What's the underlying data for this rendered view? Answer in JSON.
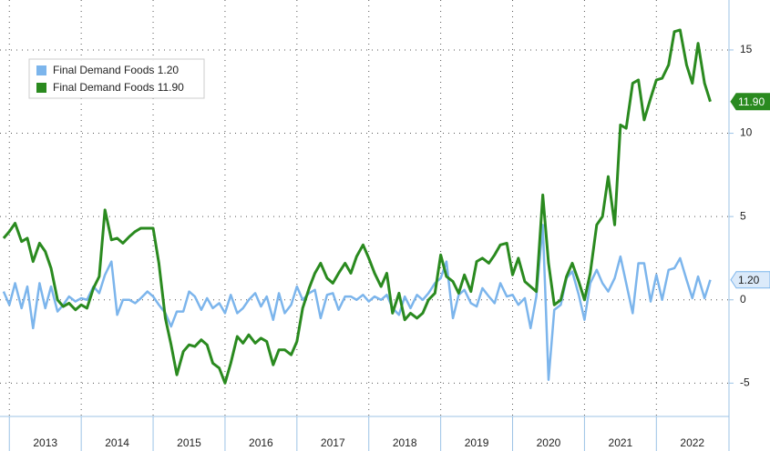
{
  "chart_data": {
    "type": "line",
    "x": [
      2012.92,
      2013.0,
      2013.08,
      2013.17,
      2013.25,
      2013.33,
      2013.42,
      2013.5,
      2013.58,
      2013.67,
      2013.75,
      2013.83,
      2013.92,
      2014.0,
      2014.08,
      2014.17,
      2014.25,
      2014.33,
      2014.42,
      2014.5,
      2014.58,
      2014.67,
      2014.75,
      2014.83,
      2014.92,
      2015.0,
      2015.08,
      2015.17,
      2015.25,
      2015.33,
      2015.42,
      2015.5,
      2015.58,
      2015.67,
      2015.75,
      2015.83,
      2015.92,
      2016.0,
      2016.08,
      2016.17,
      2016.25,
      2016.33,
      2016.42,
      2016.5,
      2016.58,
      2016.67,
      2016.75,
      2016.83,
      2016.92,
      2017.0,
      2017.08,
      2017.17,
      2017.25,
      2017.33,
      2017.42,
      2017.5,
      2017.58,
      2017.67,
      2017.75,
      2017.83,
      2017.92,
      2018.0,
      2018.08,
      2018.17,
      2018.25,
      2018.33,
      2018.42,
      2018.5,
      2018.58,
      2018.67,
      2018.75,
      2018.83,
      2018.92,
      2019.0,
      2019.08,
      2019.17,
      2019.25,
      2019.33,
      2019.42,
      2019.5,
      2019.58,
      2019.67,
      2019.75,
      2019.83,
      2019.92,
      2020.0,
      2020.08,
      2020.17,
      2020.25,
      2020.33,
      2020.42,
      2020.5,
      2020.58,
      2020.67,
      2020.75,
      2020.83,
      2020.92,
      2021.0,
      2021.08,
      2021.17,
      2021.25,
      2021.33,
      2021.42,
      2021.5,
      2021.58,
      2021.67,
      2021.75,
      2021.83,
      2021.92,
      2022.0,
      2022.08,
      2022.17,
      2022.25,
      2022.33,
      2022.42,
      2022.5,
      2022.58,
      2022.67,
      2022.75
    ],
    "series": [
      {
        "name": "Final Demand Foods 1.20",
        "color": "#7cb5ec",
        "end_label": "1.20",
        "values": [
          0.5,
          -0.3,
          1.0,
          -0.5,
          0.8,
          -1.7,
          1.0,
          -0.5,
          0.8,
          -0.7,
          -0.3,
          0.2,
          -0.1,
          0.1,
          0.0,
          0.8,
          0.4,
          1.5,
          2.3,
          -0.9,
          0.0,
          0.0,
          -0.2,
          0.1,
          0.5,
          0.2,
          -0.3,
          -0.8,
          -1.6,
          -0.7,
          -0.7,
          0.5,
          0.2,
          -0.6,
          0.1,
          -0.5,
          -0.2,
          -0.8,
          0.3,
          -0.8,
          -0.5,
          0.0,
          0.4,
          -0.4,
          0.2,
          -1.2,
          0.4,
          -0.8,
          -0.3,
          0.8,
          0.0,
          0.4,
          0.6,
          -1.1,
          0.3,
          0.4,
          -0.6,
          0.2,
          0.2,
          0.0,
          0.3,
          -0.1,
          0.2,
          0.0,
          0.3,
          -0.5,
          -0.9,
          0.2,
          -0.5,
          0.3,
          0.0,
          0.4,
          1.0,
          1.3,
          2.3,
          -1.1,
          0.3,
          0.6,
          -0.2,
          -0.4,
          0.7,
          0.2,
          -0.2,
          1.0,
          0.2,
          0.3,
          -0.3,
          0.1,
          -1.7,
          0.2,
          4.5,
          -4.8,
          -0.6,
          -0.3,
          1.3,
          1.7,
          0.3,
          -1.2,
          1.0,
          1.8,
          1.0,
          0.5,
          1.3,
          2.6,
          1.0,
          -0.8,
          2.2,
          2.2,
          -0.1,
          1.5,
          0.0,
          1.8,
          1.9,
          2.5,
          1.2,
          0.1,
          1.4,
          0.1,
          1.2
        ]
      },
      {
        "name": "Final Demand Foods 11.90",
        "color": "#2a8a1f",
        "end_label": "11.90",
        "values": [
          3.7,
          4.1,
          4.6,
          3.5,
          3.7,
          2.3,
          3.4,
          2.9,
          1.9,
          0.0,
          -0.4,
          -0.2,
          -0.6,
          -0.3,
          -0.5,
          0.7,
          1.4,
          5.4,
          3.6,
          3.7,
          3.4,
          3.8,
          4.1,
          4.3,
          4.3,
          4.3,
          2.2,
          -1.1,
          -2.7,
          -4.5,
          -3.1,
          -2.7,
          -2.8,
          -2.4,
          -2.7,
          -3.8,
          -4.1,
          -5.0,
          -3.8,
          -2.2,
          -2.6,
          -2.1,
          -2.6,
          -2.3,
          -2.5,
          -3.9,
          -3.0,
          -3.0,
          -3.3,
          -2.5,
          -0.5,
          0.7,
          1.6,
          2.2,
          1.3,
          1.0,
          1.6,
          2.2,
          1.6,
          2.6,
          3.3,
          2.5,
          1.6,
          0.8,
          1.6,
          -0.8,
          0.4,
          -1.2,
          -0.8,
          -1.1,
          -0.8,
          0.0,
          0.4,
          2.7,
          1.4,
          1.1,
          0.4,
          1.5,
          0.5,
          2.3,
          2.5,
          2.2,
          2.7,
          3.3,
          3.4,
          1.5,
          2.5,
          1.1,
          0.8,
          0.5,
          6.3,
          2.2,
          -0.3,
          0.0,
          1.4,
          2.2,
          1.1,
          0.0,
          1.6,
          4.5,
          5.0,
          7.4,
          4.5,
          10.5,
          10.3,
          13.0,
          13.2,
          10.8,
          12.1,
          13.2,
          13.3,
          14.1,
          16.1,
          16.2,
          14.1,
          13.0,
          15.4,
          13.0,
          11.9
        ]
      }
    ],
    "xlim": [
      2012.87,
      2023.01
    ],
    "xticks": [
      2013,
      2014,
      2015,
      2016,
      2017,
      2018,
      2019,
      2020,
      2021,
      2022
    ],
    "ylim": [
      -7,
      18
    ],
    "yticks": [
      -5,
      0,
      5,
      10,
      15
    ],
    "grid": true
  }
}
